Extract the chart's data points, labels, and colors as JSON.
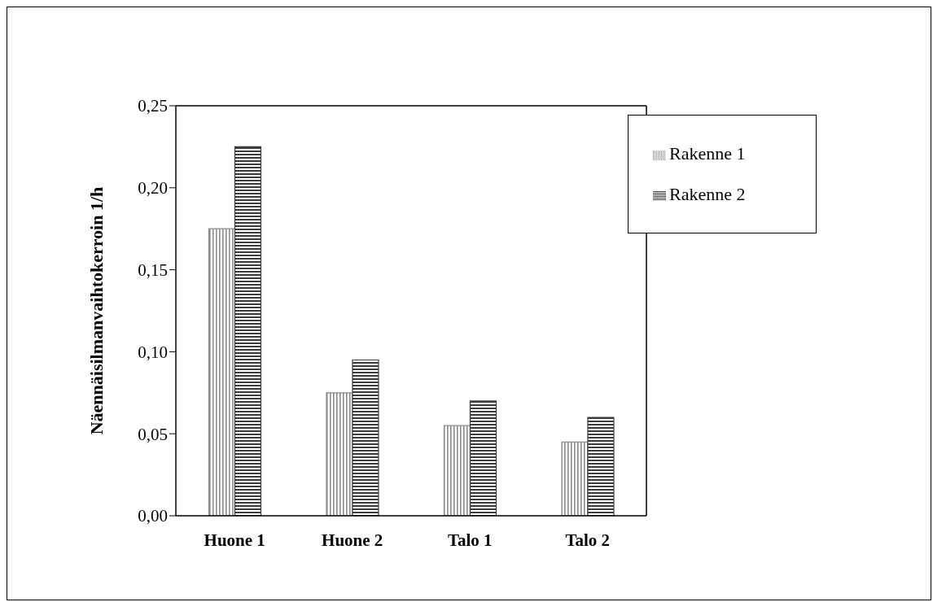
{
  "chart_data": {
    "type": "bar",
    "ylabel": "Näennäisilmanvaihtokerroin  1/h",
    "categories": [
      "Huone 1",
      "Huone 2",
      "Talo 1",
      "Talo 2"
    ],
    "series": [
      {
        "name": "Rakenne 1",
        "color": "#8c8c8c",
        "values": [
          0.175,
          0.075,
          0.055,
          0.045
        ]
      },
      {
        "name": "Rakenne 2",
        "color": "#3c3c3c",
        "values": [
          0.225,
          0.095,
          0.07,
          0.06
        ]
      }
    ],
    "ylim": [
      0,
      0.25
    ],
    "yticks": [
      {
        "value": 0,
        "label": "0,00"
      },
      {
        "value": 0.05,
        "label": "0,05"
      },
      {
        "value": 0.1,
        "label": "0,10"
      },
      {
        "value": 0.15,
        "label": "0,15"
      },
      {
        "value": 0.2,
        "label": "0,20"
      },
      {
        "value": 0.25,
        "label": "0,25"
      }
    ],
    "grid": false,
    "legend": "top right"
  }
}
